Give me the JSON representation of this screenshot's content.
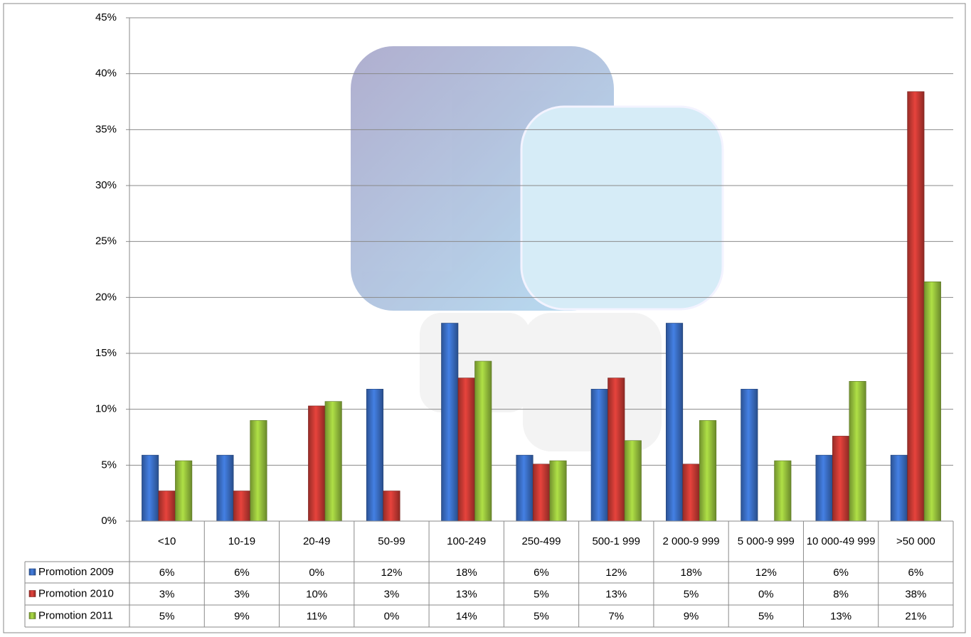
{
  "chart_data": {
    "type": "bar",
    "categories": [
      "<10",
      "10-19",
      "20-49",
      "50-99",
      "100-249",
      "250-499",
      "500-1 999",
      "2 000-9 999",
      "5 000-9 999",
      "10 000-49 999",
      ">50 000"
    ],
    "series": [
      {
        "name": "Promotion 2009",
        "color": "#3b6fc6",
        "values": [
          5.9,
          5.9,
          0,
          11.8,
          17.7,
          5.9,
          11.8,
          17.7,
          11.8,
          5.9,
          5.9
        ],
        "value_labels": [
          "6%",
          "6%",
          "0%",
          "12%",
          "18%",
          "6%",
          "12%",
          "18%",
          "12%",
          "6%",
          "6%"
        ]
      },
      {
        "name": "Promotion 2010",
        "color": "#c93a34",
        "values": [
          2.7,
          2.7,
          10.3,
          2.7,
          12.8,
          5.1,
          12.8,
          5.1,
          0,
          7.6,
          38.4
        ],
        "value_labels": [
          "3%",
          "3%",
          "10%",
          "3%",
          "13%",
          "5%",
          "13%",
          "5%",
          "0%",
          "8%",
          "38%"
        ]
      },
      {
        "name": "Promotion 2011",
        "color": "#98c33d",
        "values": [
          5.4,
          9.0,
          10.7,
          0,
          14.3,
          5.4,
          7.2,
          9.0,
          5.4,
          12.5,
          21.4
        ],
        "value_labels": [
          "5%",
          "9%",
          "11%",
          "0%",
          "14%",
          "5%",
          "7%",
          "9%",
          "5%",
          "13%",
          "21%"
        ]
      }
    ],
    "ylim": [
      0,
      45
    ],
    "yticks": [
      {
        "value": 0,
        "label": "0%"
      },
      {
        "value": 5,
        "label": "5%"
      },
      {
        "value": 10,
        "label": "10%"
      },
      {
        "value": 15,
        "label": "15%"
      },
      {
        "value": 20,
        "label": "20%"
      },
      {
        "value": 25,
        "label": "25%"
      },
      {
        "value": 30,
        "label": "30%"
      },
      {
        "value": 35,
        "label": "35%"
      },
      {
        "value": 40,
        "label": "40%"
      },
      {
        "value": 45,
        "label": "45%"
      }
    ],
    "grid": true
  }
}
